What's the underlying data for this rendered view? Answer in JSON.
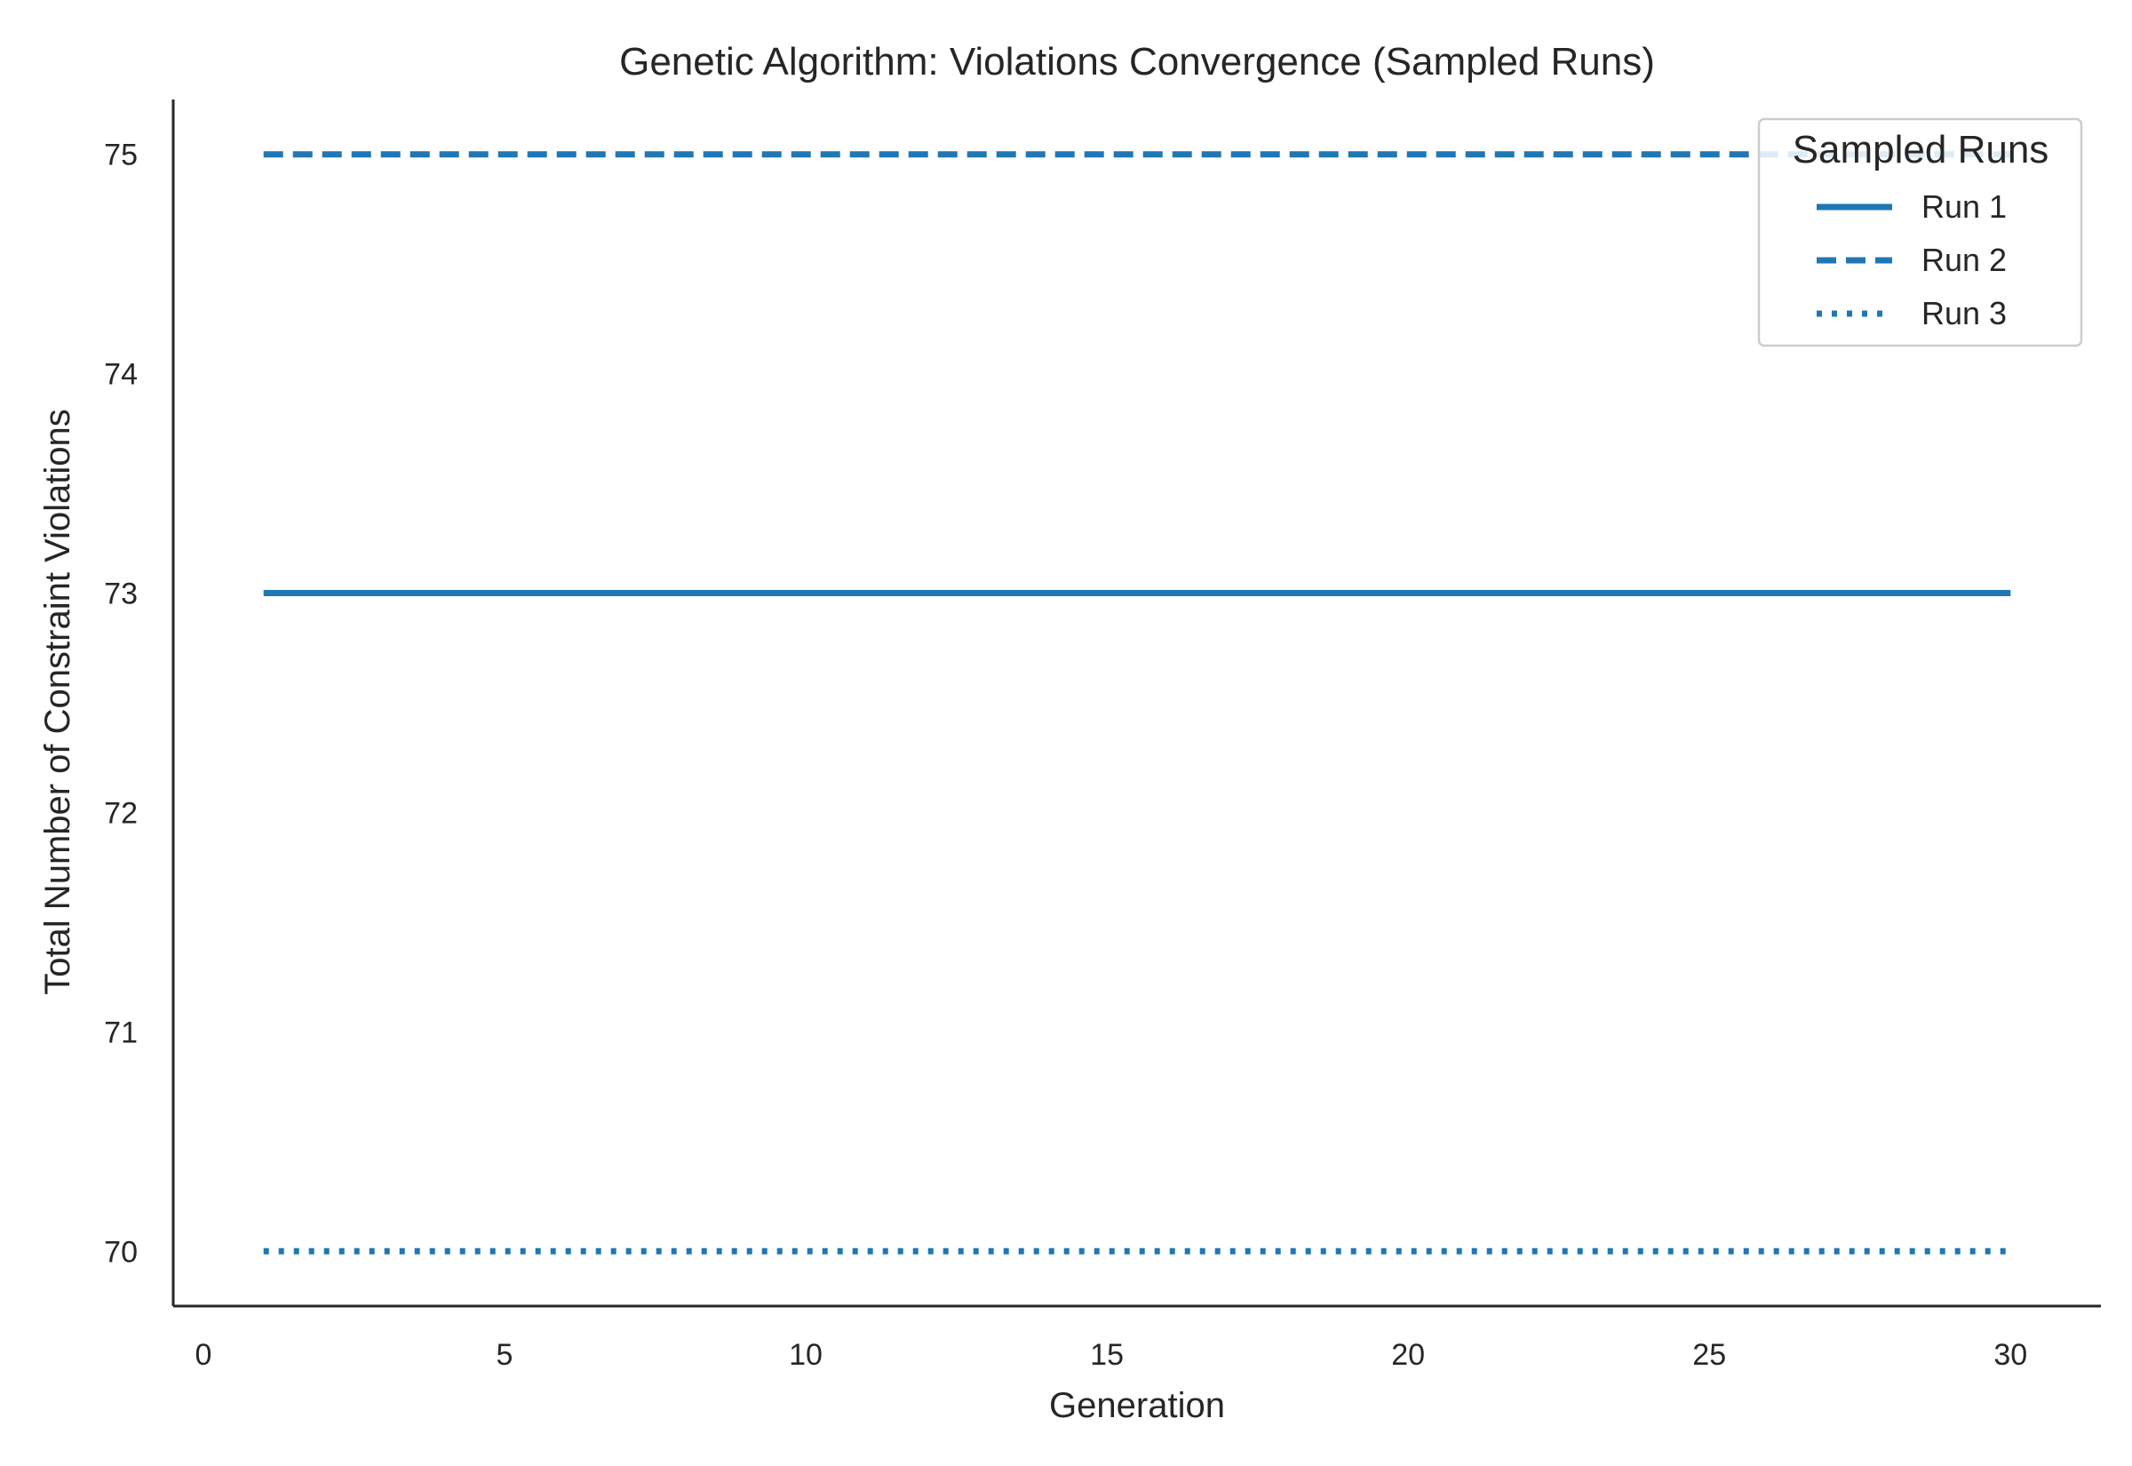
{
  "chart_data": {
    "type": "line",
    "title": "Genetic Algorithm: Violations Convergence (Sampled Runs)",
    "xlabel": "Generation",
    "ylabel": "Total Number of Constraint Violations",
    "xlim": [
      -0.5,
      31.5
    ],
    "ylim": [
      69.75,
      75.25
    ],
    "xticks": [
      0,
      5,
      10,
      15,
      20,
      25,
      30
    ],
    "yticks": [
      70,
      71,
      72,
      73,
      74,
      75
    ],
    "grid": false,
    "legend": {
      "title": "Sampled Runs",
      "placement": "top-right"
    },
    "color": "#1f77b4",
    "series": [
      {
        "name": "Run 1",
        "style": "solid",
        "x": [
          1,
          30
        ],
        "y": [
          73,
          73
        ]
      },
      {
        "name": "Run 2",
        "style": "dashed",
        "x": [
          1,
          30
        ],
        "y": [
          75,
          75
        ]
      },
      {
        "name": "Run 3",
        "style": "dotted",
        "x": [
          1,
          30
        ],
        "y": [
          70,
          70
        ]
      }
    ]
  }
}
